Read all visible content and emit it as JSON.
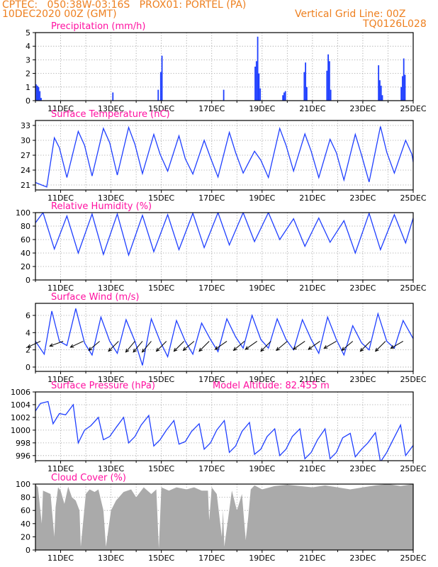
{
  "header": {
    "line1": "CPTEC:   050:38W-03:16S   PROX01: PORTEL (PA)",
    "line2": "10DEC2020 00Z (GMT)",
    "grid_note": "Vertical Grid Line: 00Z",
    "code": "TQ0126L028"
  },
  "colors": {
    "header": "#ee8020",
    "title": "#ff10a0",
    "series": "#1f3fff",
    "cloud": "#aaaaaa",
    "axis": "#000000",
    "grid": "#9a9a9a"
  },
  "x_axis": {
    "start": "10DEC2020 00Z",
    "end": "25DEC2020 00Z",
    "tick_labels": [
      "11DEC",
      "13DEC",
      "15DEC",
      "17DEC",
      "19DEC",
      "21DEC",
      "23DEC",
      "25DEC"
    ]
  },
  "chart_data": [
    {
      "id": "precip",
      "type": "bar",
      "title": "Precipitation (mm/h)",
      "ylim": [
        0,
        5
      ],
      "yticks": [
        0,
        1,
        2,
        3,
        4,
        5
      ],
      "time_unit": "days after 10DEC2020 00Z",
      "x": [
        0.0,
        0.05,
        0.1,
        0.15,
        0.2,
        3.05,
        4.85,
        4.95,
        5.0,
        7.45,
        8.7,
        8.75,
        8.8,
        8.85,
        8.9,
        9.8,
        9.85,
        9.9,
        10.65,
        10.7,
        10.75,
        11.55,
        11.6,
        11.65,
        11.7,
        13.6,
        13.65,
        13.7,
        13.75,
        14.5,
        14.55,
        14.6,
        14.65
      ],
      "values": [
        1.2,
        1.1,
        1.0,
        0.7,
        0.2,
        0.6,
        0.8,
        2.1,
        3.3,
        0.8,
        2.5,
        2.9,
        4.7,
        2.0,
        0.9,
        0.4,
        0.6,
        0.7,
        2.1,
        2.8,
        1.0,
        2.2,
        3.4,
        2.9,
        0.8,
        2.6,
        1.5,
        1.1,
        0.4,
        1.0,
        1.8,
        3.1,
        1.9
      ]
    },
    {
      "id": "temp",
      "type": "line",
      "title": "Surface Temperature (nC)",
      "ylim": [
        20,
        34
      ],
      "yticks": [
        21,
        24,
        27,
        30,
        33
      ],
      "time_unit": "days after 10DEC2020 00Z",
      "x": [
        0,
        0.45,
        0.75,
        0.95,
        1.25,
        1.7,
        1.95,
        2.25,
        2.7,
        2.95,
        3.25,
        3.7,
        3.95,
        4.25,
        4.7,
        4.95,
        5.25,
        5.7,
        5.95,
        6.25,
        6.7,
        6.95,
        7.25,
        7.7,
        7.95,
        8.25,
        8.7,
        8.95,
        9.25,
        9.7,
        9.95,
        10.25,
        10.7,
        10.95,
        11.25,
        11.7,
        11.95,
        12.25,
        12.7,
        12.95,
        13.25,
        13.7,
        13.95,
        14.25,
        14.7,
        14.95,
        15.0
      ],
      "values": [
        21.5,
        20.6,
        30.5,
        28.5,
        22.5,
        31.8,
        29.0,
        22.8,
        32.4,
        29.5,
        23.0,
        32.6,
        29.2,
        23.3,
        31.2,
        27.2,
        23.8,
        30.9,
        26.3,
        23.2,
        30.0,
        26.5,
        22.6,
        31.6,
        27.5,
        23.4,
        27.8,
        26.0,
        22.5,
        32.4,
        29.0,
        23.8,
        31.3,
        27.8,
        22.5,
        30.2,
        27.5,
        22.0,
        31.2,
        27.0,
        21.6,
        32.8,
        27.6,
        23.4,
        30.0,
        27.2,
        25.6
      ]
    },
    {
      "id": "rh",
      "type": "line",
      "title": "Relative Humidity (%)",
      "ylim": [
        0,
        100
      ],
      "yticks": [
        0,
        20,
        40,
        60,
        80,
        100
      ],
      "time_unit": "days after 10DEC2020 00Z",
      "x": [
        0,
        0.3,
        0.75,
        1.25,
        1.7,
        2.25,
        2.7,
        3.25,
        3.7,
        4.25,
        4.7,
        5.25,
        5.7,
        6.25,
        6.7,
        7.25,
        7.7,
        8.25,
        8.7,
        9.25,
        9.7,
        10.25,
        10.7,
        11.25,
        11.7,
        12.25,
        12.7,
        13.25,
        13.7,
        14.25,
        14.7,
        15.0
      ],
      "values": [
        85,
        100,
        46,
        95,
        40,
        98,
        38,
        98,
        37,
        96,
        42,
        97,
        45,
        99,
        48,
        100,
        52,
        100,
        57,
        100,
        60,
        91,
        50,
        92,
        56,
        88,
        40,
        99,
        45,
        97,
        55,
        92
      ]
    },
    {
      "id": "wind",
      "type": "line",
      "title": "Surface Wind (m/s)",
      "ylim": [
        -0.5,
        7.4
      ],
      "yticks": [
        0,
        2,
        4,
        6
      ],
      "time_unit": "days after 10DEC2020 00Z",
      "x": [
        0,
        0.35,
        0.65,
        0.95,
        1.25,
        1.6,
        1.95,
        2.25,
        2.6,
        2.95,
        3.25,
        3.6,
        3.95,
        4.25,
        4.6,
        4.95,
        5.25,
        5.6,
        5.95,
        6.25,
        6.6,
        6.95,
        7.25,
        7.6,
        7.95,
        8.25,
        8.6,
        8.95,
        9.25,
        9.6,
        9.95,
        10.25,
        10.6,
        10.95,
        11.25,
        11.6,
        11.95,
        12.25,
        12.6,
        12.95,
        13.25,
        13.6,
        13.95,
        14.25,
        14.6,
        15.0
      ],
      "values": [
        3.0,
        1.5,
        6.5,
        3.0,
        2.5,
        6.8,
        2.8,
        1.4,
        5.8,
        3.0,
        1.6,
        5.5,
        3.0,
        0.2,
        5.6,
        3.0,
        1.2,
        5.4,
        3.0,
        1.5,
        5.1,
        3.2,
        1.8,
        5.6,
        3.5,
        2.2,
        6.0,
        3.2,
        2.2,
        5.6,
        3.2,
        2.0,
        5.5,
        3.2,
        1.6,
        5.8,
        3.2,
        1.4,
        4.8,
        2.8,
        2.0,
        6.2,
        3.0,
        2.2,
        5.4,
        3.3
      ],
      "arrows_x": [
        0.2,
        1.1,
        1.9,
        2.55,
        3.3,
        3.95,
        4.25,
        4.6,
        5.2,
        5.9,
        6.3,
        6.9,
        7.6,
        8.3,
        8.8,
        9.35,
        10.0,
        10.7,
        11.3,
        11.95,
        12.6,
        13.3,
        13.9,
        14.6
      ],
      "arrows_dir_deg": [
        205,
        200,
        205,
        220,
        225,
        230,
        230,
        230,
        225,
        225,
        220,
        225,
        215,
        220,
        215,
        225,
        220,
        215,
        215,
        210,
        220,
        225,
        225,
        210
      ]
    },
    {
      "id": "press",
      "type": "line",
      "title": "Surface Pressure (hPa)",
      "annotation": "Model Altitude: 82.455 m",
      "ylim": [
        995.2,
        1006
      ],
      "yticks": [
        996,
        998,
        1000,
        1002,
        1004,
        1006
      ],
      "time_unit": "days after 10DEC2020 00Z",
      "x": [
        0,
        0.2,
        0.5,
        0.7,
        0.95,
        1.2,
        1.5,
        1.7,
        1.95,
        2.2,
        2.5,
        2.7,
        2.95,
        3.2,
        3.5,
        3.7,
        3.95,
        4.2,
        4.5,
        4.7,
        4.95,
        5.2,
        5.5,
        5.7,
        5.95,
        6.2,
        6.5,
        6.7,
        6.95,
        7.2,
        7.5,
        7.7,
        7.95,
        8.2,
        8.5,
        8.7,
        8.95,
        9.2,
        9.5,
        9.7,
        9.95,
        10.2,
        10.5,
        10.7,
        10.95,
        11.2,
        11.5,
        11.7,
        11.95,
        12.2,
        12.5,
        12.7,
        12.95,
        13.2,
        13.5,
        13.7,
        13.95,
        14.2,
        14.5,
        14.7,
        15.0
      ],
      "values": [
        1003.0,
        1004.2,
        1004.5,
        1001.0,
        1002.6,
        1002.4,
        1004.0,
        998.0,
        1000.0,
        1000.7,
        1002.0,
        998.5,
        999.0,
        1000.4,
        1002.0,
        998.0,
        999.0,
        1000.8,
        1002.3,
        997.5,
        998.5,
        1000.0,
        1001.5,
        997.8,
        998.2,
        999.8,
        1001.0,
        997.0,
        998.0,
        1000.0,
        1001.5,
        996.5,
        997.5,
        999.8,
        1001.2,
        996.2,
        997.0,
        999.0,
        1000.2,
        996.0,
        997.0,
        999.0,
        1000.2,
        995.5,
        996.5,
        998.5,
        1000.2,
        995.5,
        996.5,
        998.8,
        999.5,
        995.8,
        997.0,
        998.0,
        999.6,
        995.0,
        996.5,
        998.5,
        1000.8,
        996.0,
        997.6
      ]
    },
    {
      "id": "cloud",
      "type": "area",
      "title": "Cloud Cover (%)",
      "ylim": [
        0,
        100
      ],
      "yticks": [
        0,
        20,
        40,
        60,
        80,
        100
      ],
      "time_unit": "days after 10DEC2020 00Z",
      "x": [
        0,
        0.1,
        0.25,
        0.3,
        0.6,
        0.75,
        0.8,
        0.9,
        1.0,
        1.15,
        1.3,
        1.45,
        1.6,
        1.75,
        1.8,
        2.0,
        2.15,
        2.35,
        2.5,
        2.7,
        2.8,
        3.0,
        3.2,
        3.5,
        3.8,
        4.0,
        4.3,
        4.6,
        4.8,
        4.9,
        5.0,
        5.3,
        5.6,
        6.0,
        6.3,
        6.6,
        6.85,
        6.9,
        7.0,
        7.2,
        7.4,
        7.45,
        7.5,
        7.8,
        8.0,
        8.2,
        8.35,
        8.45,
        8.55,
        8.7,
        9.0,
        9.5,
        10.0,
        10.5,
        11.0,
        11.5,
        12.0,
        12.5,
        13.0,
        13.5,
        14.0,
        14.5,
        15.0
      ],
      "values": [
        100,
        95,
        40,
        90,
        85,
        20,
        65,
        95,
        90,
        70,
        96,
        80,
        75,
        60,
        5,
        85,
        92,
        88,
        92,
        60,
        5,
        60,
        75,
        88,
        92,
        80,
        95,
        85,
        92,
        2,
        95,
        90,
        95,
        92,
        95,
        90,
        90,
        45,
        95,
        85,
        20,
        60,
        5,
        90,
        60,
        85,
        15,
        50,
        92,
        98,
        92,
        97,
        99,
        97,
        95,
        98,
        95,
        92,
        95,
        98,
        100,
        97,
        100
      ]
    }
  ]
}
